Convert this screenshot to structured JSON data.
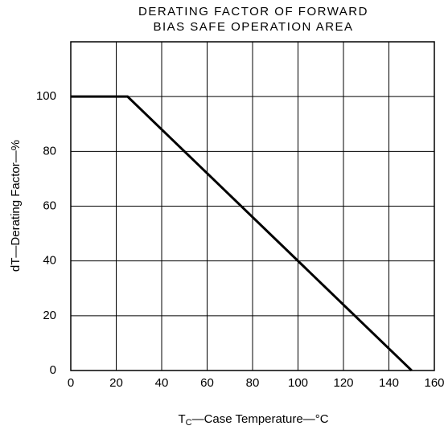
{
  "chart_data": {
    "type": "line",
    "title": [
      "DERATING FACTOR OF FORWARD",
      "BIAS SAFE OPERATION AREA"
    ],
    "xlabel": {
      "main": "T",
      "sub": "C",
      "rest": "—Case Temperature—°C"
    },
    "ylabel": "dT—Derating Factor—%",
    "series": [
      {
        "color": "#000000",
        "x": [
          0,
          25,
          150
        ],
        "values": [
          100,
          100,
          0
        ]
      }
    ],
    "xlim": [
      0,
      160
    ],
    "xticks": [
      0,
      20,
      40,
      60,
      80,
      100,
      120,
      140,
      160
    ],
    "ylim": [
      0,
      120
    ],
    "yticks": [
      0,
      20,
      40,
      60,
      80,
      100
    ],
    "grid": true
  }
}
